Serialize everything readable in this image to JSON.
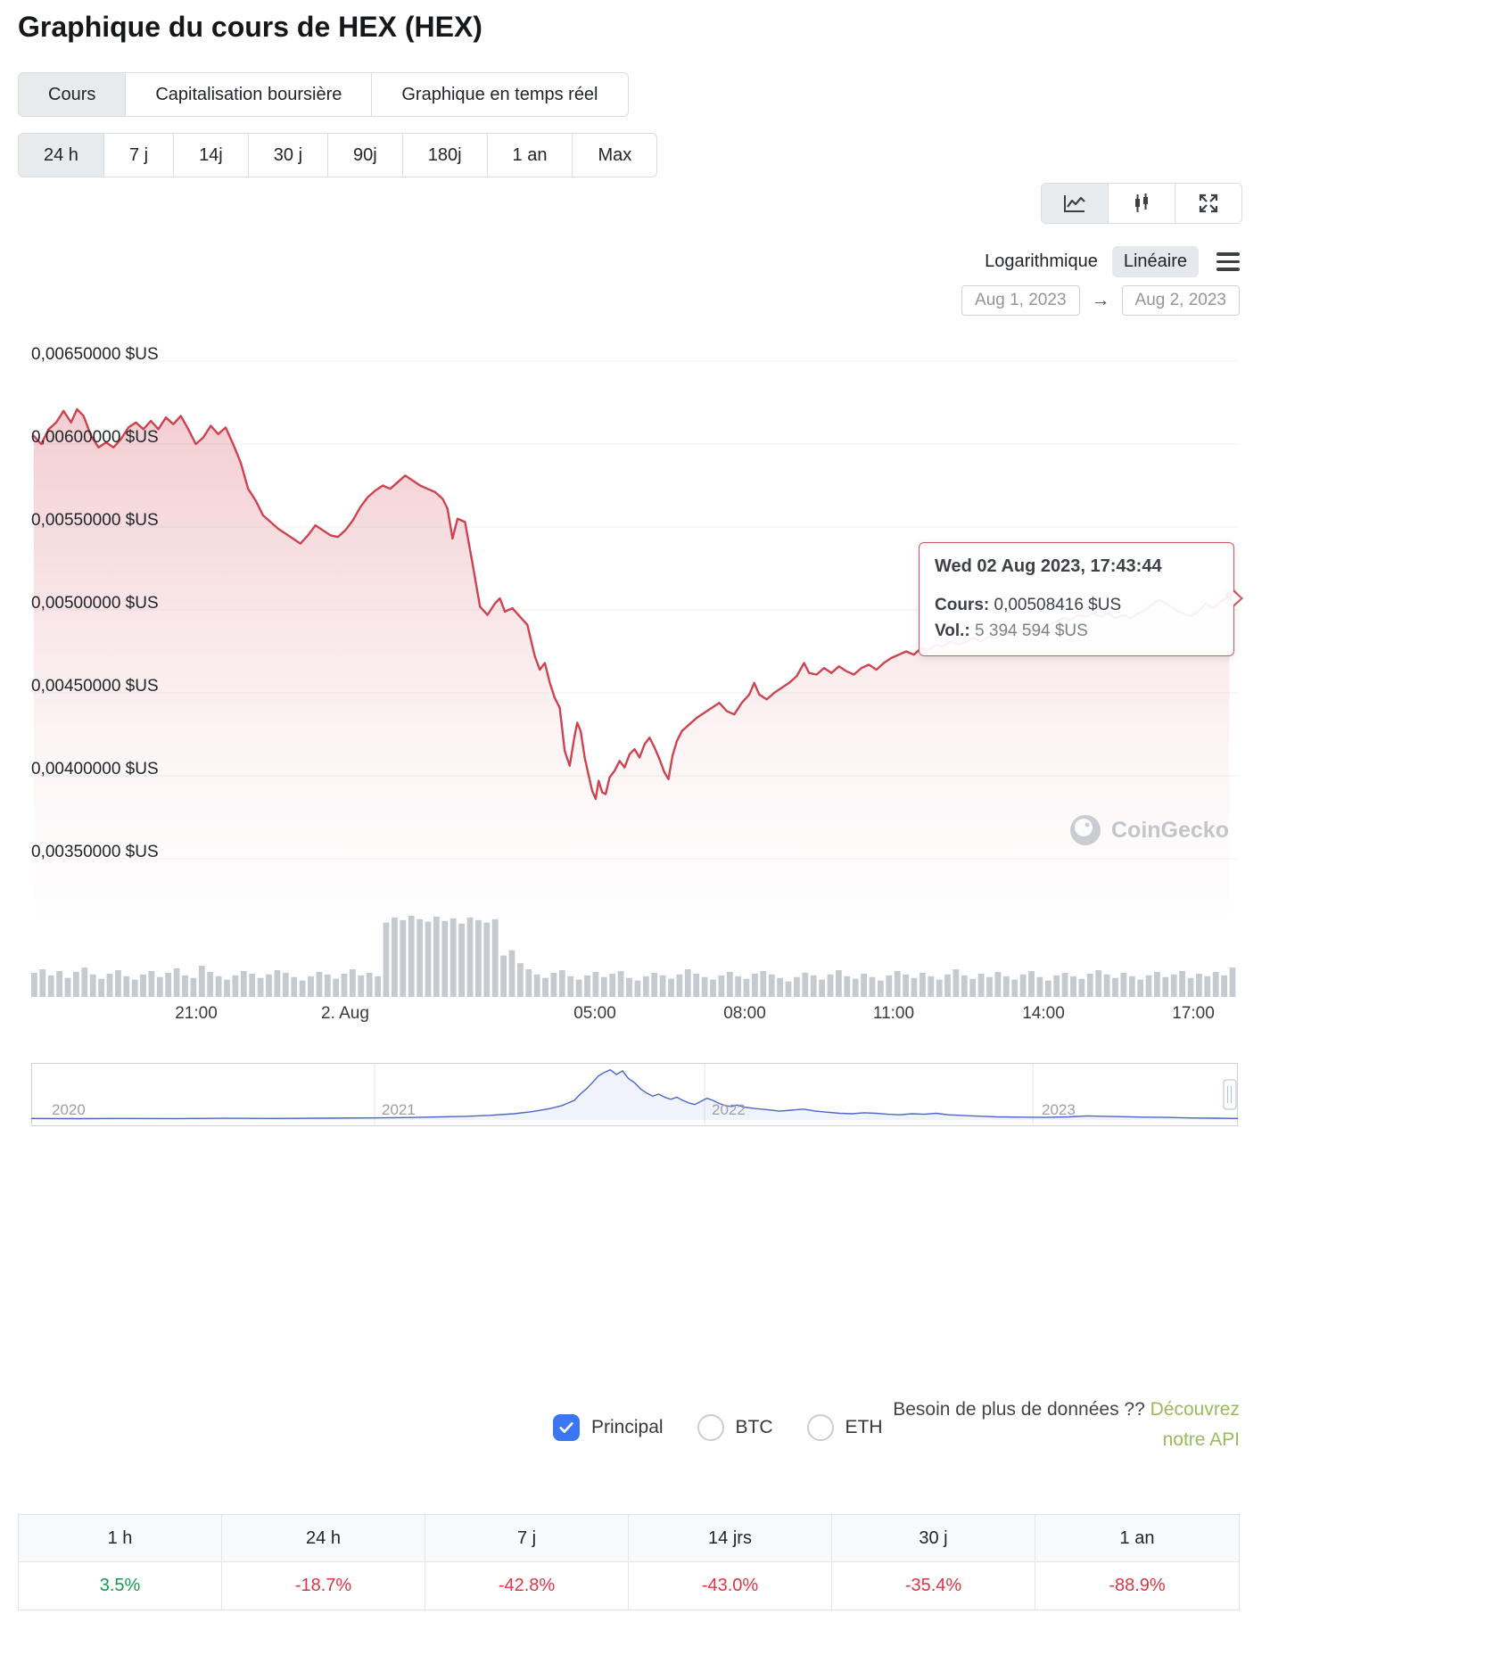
{
  "page": {
    "title": "Graphique du cours de HEX (HEX)"
  },
  "colors": {
    "accent_red": "#cf4350",
    "positive_green": "#169a4f",
    "negative_red": "#dc3545",
    "checkbox_blue": "#3b77f3",
    "api_link_green": "#9aba5c",
    "volume_gray": "#c5cad1",
    "navigator_blue": "#4a66cc",
    "selected_bg": "#e8ebee"
  },
  "tabs": {
    "chart_tabs": [
      {
        "label": "Cours",
        "selected": true
      },
      {
        "label": "Capitalisation boursière",
        "selected": false
      },
      {
        "label": "Graphique en temps réel",
        "selected": false
      }
    ],
    "range_tabs": [
      {
        "label": "24 h",
        "selected": true
      },
      {
        "label": "7 j",
        "selected": false
      },
      {
        "label": "14j",
        "selected": false
      },
      {
        "label": "30 j",
        "selected": false
      },
      {
        "label": "90j",
        "selected": false
      },
      {
        "label": "180j",
        "selected": false
      },
      {
        "label": "1 an",
        "selected": false
      },
      {
        "label": "Max",
        "selected": false
      }
    ]
  },
  "controls": {
    "chart_type_icons": [
      "line-chart",
      "candlestick",
      "fullscreen"
    ],
    "scale": {
      "log_label": "Logarithmique",
      "linear_label": "Linéaire",
      "selected": "linear"
    },
    "date_from": "Aug 1, 2023",
    "date_arrow": "→",
    "date_to": "Aug 2, 2023"
  },
  "tooltip": {
    "title": "Wed 02 Aug 2023, 17:43:44",
    "price_label": "Cours:",
    "price_value": "0,00508416 $US",
    "vol_label": "Vol.:",
    "vol_value": "5 394 594 $US"
  },
  "watermark": {
    "text": "CoinGecko"
  },
  "legend": {
    "items": [
      {
        "label": "Principal",
        "checked": true
      },
      {
        "label": "BTC",
        "checked": false
      },
      {
        "label": "ETH",
        "checked": false
      }
    ],
    "api_prefix": "Besoin de plus de données ??",
    "api_link_line1": "Découvrez",
    "api_link_line2": "notre API"
  },
  "perf_table": {
    "columns": [
      "1 h",
      "24 h",
      "7 j",
      "14 jrs",
      "30 j",
      "1 an"
    ],
    "values": [
      {
        "text": "3.5%",
        "dir": "up"
      },
      {
        "text": "-18.7%",
        "dir": "down"
      },
      {
        "text": "-42.8%",
        "dir": "down"
      },
      {
        "text": "-43.0%",
        "dir": "down"
      },
      {
        "text": "-35.4%",
        "dir": "down"
      },
      {
        "text": "-88.9%",
        "dir": "down"
      }
    ]
  },
  "chart_data": {
    "type": "line",
    "title": "HEX (HEX) price, 24 h",
    "currency": "$US",
    "line_color": "#cf4350",
    "t_range": [
      -0.3,
      23.9
    ],
    "y_ticks": [
      {
        "v": 0.0065,
        "label": "0,00650000 $US"
      },
      {
        "v": 0.006,
        "label": "0,00600000 $US"
      },
      {
        "v": 0.0055,
        "label": "0,00550000 $US"
      },
      {
        "v": 0.005,
        "label": "0,00500000 $US"
      },
      {
        "v": 0.0045,
        "label": "0,00450000 $US"
      },
      {
        "v": 0.004,
        "label": "0,00400000 $US"
      },
      {
        "v": 0.0035,
        "label": "0,00350000 $US"
      }
    ],
    "x_ticks": [
      {
        "t": 3,
        "label": "21:00"
      },
      {
        "t": 6,
        "label": "2. Aug"
      },
      {
        "t": 11,
        "label": "05:00"
      },
      {
        "t": 14,
        "label": "08:00"
      },
      {
        "t": 17,
        "label": "11:00"
      },
      {
        "t": 20,
        "label": "14:00"
      },
      {
        "t": 23,
        "label": "17:00"
      }
    ],
    "end_point": {
      "t": 23.73,
      "price": 0.00508416
    },
    "points": [
      [
        -0.25,
        0.00605
      ],
      [
        -0.1,
        0.006
      ],
      [
        0.05,
        0.00609
      ],
      [
        0.2,
        0.00613
      ],
      [
        0.35,
        0.0062
      ],
      [
        0.5,
        0.00613
      ],
      [
        0.62,
        0.00621
      ],
      [
        0.75,
        0.00617
      ],
      [
        0.9,
        0.00605
      ],
      [
        1.05,
        0.00598
      ],
      [
        1.2,
        0.00601
      ],
      [
        1.35,
        0.00598
      ],
      [
        1.5,
        0.00603
      ],
      [
        1.65,
        0.0061
      ],
      [
        1.8,
        0.00613
      ],
      [
        1.95,
        0.00609
      ],
      [
        2.1,
        0.00614
      ],
      [
        2.25,
        0.00609
      ],
      [
        2.4,
        0.00616
      ],
      [
        2.55,
        0.00612
      ],
      [
        2.7,
        0.00617
      ],
      [
        2.85,
        0.00609
      ],
      [
        3.0,
        0.006
      ],
      [
        3.15,
        0.00604
      ],
      [
        3.3,
        0.00611
      ],
      [
        3.45,
        0.00606
      ],
      [
        3.6,
        0.0061
      ],
      [
        3.75,
        0.006
      ],
      [
        3.9,
        0.00589
      ],
      [
        4.05,
        0.00573
      ],
      [
        4.2,
        0.00566
      ],
      [
        4.35,
        0.00557
      ],
      [
        4.5,
        0.00553
      ],
      [
        4.65,
        0.00549
      ],
      [
        4.8,
        0.00546
      ],
      [
        4.95,
        0.00543
      ],
      [
        5.1,
        0.0054
      ],
      [
        5.25,
        0.00545
      ],
      [
        5.4,
        0.00551
      ],
      [
        5.55,
        0.00548
      ],
      [
        5.7,
        0.00545
      ],
      [
        5.85,
        0.00544
      ],
      [
        6.0,
        0.00548
      ],
      [
        6.15,
        0.00554
      ],
      [
        6.3,
        0.00562
      ],
      [
        6.45,
        0.00568
      ],
      [
        6.6,
        0.00572
      ],
      [
        6.75,
        0.00575
      ],
      [
        6.9,
        0.00573
      ],
      [
        7.05,
        0.00577
      ],
      [
        7.2,
        0.00581
      ],
      [
        7.35,
        0.00578
      ],
      [
        7.5,
        0.00575
      ],
      [
        7.65,
        0.00573
      ],
      [
        7.8,
        0.00571
      ],
      [
        7.95,
        0.00567
      ],
      [
        8.05,
        0.00561
      ],
      [
        8.15,
        0.00543
      ],
      [
        8.25,
        0.00555
      ],
      [
        8.4,
        0.00553
      ],
      [
        8.55,
        0.00528
      ],
      [
        8.7,
        0.00502
      ],
      [
        8.85,
        0.00497
      ],
      [
        9.0,
        0.00504
      ],
      [
        9.1,
        0.00507
      ],
      [
        9.2,
        0.00499
      ],
      [
        9.35,
        0.00501
      ],
      [
        9.5,
        0.00496
      ],
      [
        9.65,
        0.00491
      ],
      [
        9.8,
        0.00472
      ],
      [
        9.9,
        0.00464
      ],
      [
        10.0,
        0.00468
      ],
      [
        10.1,
        0.00456
      ],
      [
        10.2,
        0.00447
      ],
      [
        10.3,
        0.00441
      ],
      [
        10.4,
        0.00415
      ],
      [
        10.5,
        0.00406
      ],
      [
        10.58,
        0.00421
      ],
      [
        10.65,
        0.00432
      ],
      [
        10.72,
        0.00427
      ],
      [
        10.8,
        0.00411
      ],
      [
        10.88,
        0.004
      ],
      [
        10.95,
        0.00391
      ],
      [
        11.02,
        0.00386
      ],
      [
        11.08,
        0.00397
      ],
      [
        11.15,
        0.0039
      ],
      [
        11.22,
        0.00389
      ],
      [
        11.3,
        0.00399
      ],
      [
        11.4,
        0.00403
      ],
      [
        11.5,
        0.00409
      ],
      [
        11.6,
        0.00405
      ],
      [
        11.7,
        0.00413
      ],
      [
        11.8,
        0.00416
      ],
      [
        11.9,
        0.00411
      ],
      [
        12.0,
        0.00419
      ],
      [
        12.1,
        0.00423
      ],
      [
        12.2,
        0.00417
      ],
      [
        12.3,
        0.0041
      ],
      [
        12.4,
        0.00402
      ],
      [
        12.48,
        0.00398
      ],
      [
        12.56,
        0.00412
      ],
      [
        12.65,
        0.00421
      ],
      [
        12.75,
        0.00427
      ],
      [
        12.9,
        0.00431
      ],
      [
        13.05,
        0.00435
      ],
      [
        13.2,
        0.00438
      ],
      [
        13.35,
        0.00441
      ],
      [
        13.5,
        0.00444
      ],
      [
        13.65,
        0.00439
      ],
      [
        13.8,
        0.00437
      ],
      [
        13.95,
        0.00444
      ],
      [
        14.1,
        0.00449
      ],
      [
        14.2,
        0.00456
      ],
      [
        14.3,
        0.00449
      ],
      [
        14.45,
        0.00446
      ],
      [
        14.6,
        0.0045
      ],
      [
        14.75,
        0.00453
      ],
      [
        14.9,
        0.00456
      ],
      [
        15.05,
        0.0046
      ],
      [
        15.2,
        0.00468
      ],
      [
        15.3,
        0.00462
      ],
      [
        15.45,
        0.00461
      ],
      [
        15.6,
        0.00465
      ],
      [
        15.75,
        0.00462
      ],
      [
        15.9,
        0.00466
      ],
      [
        16.05,
        0.00463
      ],
      [
        16.2,
        0.00461
      ],
      [
        16.35,
        0.00465
      ],
      [
        16.5,
        0.00467
      ],
      [
        16.65,
        0.00464
      ],
      [
        16.8,
        0.00468
      ],
      [
        16.95,
        0.00471
      ],
      [
        17.1,
        0.00473
      ],
      [
        17.25,
        0.00475
      ],
      [
        17.4,
        0.00473
      ],
      [
        17.55,
        0.00477
      ],
      [
        17.7,
        0.00476
      ],
      [
        17.85,
        0.00479
      ],
      [
        18.0,
        0.00478
      ],
      [
        18.15,
        0.00481
      ],
      [
        18.3,
        0.00479
      ],
      [
        18.45,
        0.00481
      ],
      [
        18.6,
        0.00483
      ],
      [
        18.75,
        0.00481
      ],
      [
        18.9,
        0.00484
      ],
      [
        19.05,
        0.00483
      ],
      [
        19.2,
        0.00486
      ],
      [
        19.35,
        0.00485
      ],
      [
        19.5,
        0.00487
      ],
      [
        19.65,
        0.00486
      ],
      [
        19.8,
        0.00489
      ],
      [
        19.95,
        0.00488
      ],
      [
        20.1,
        0.00491
      ],
      [
        20.25,
        0.00493
      ],
      [
        20.4,
        0.00495
      ],
      [
        20.55,
        0.00494
      ],
      [
        20.7,
        0.00497
      ],
      [
        20.85,
        0.00496
      ],
      [
        21.0,
        0.00498
      ],
      [
        21.15,
        0.00496
      ],
      [
        21.3,
        0.00498
      ],
      [
        21.45,
        0.00495
      ],
      [
        21.6,
        0.00497
      ],
      [
        21.75,
        0.00495
      ],
      [
        21.9,
        0.00498
      ],
      [
        22.05,
        0.005
      ],
      [
        22.2,
        0.00504
      ],
      [
        22.35,
        0.00506
      ],
      [
        22.5,
        0.00503
      ],
      [
        22.65,
        0.005
      ],
      [
        22.8,
        0.00498
      ],
      [
        22.95,
        0.00496
      ],
      [
        23.1,
        0.00499
      ],
      [
        23.25,
        0.00504
      ],
      [
        23.4,
        0.00501
      ],
      [
        23.55,
        0.00505
      ],
      [
        23.73,
        0.00508
      ]
    ],
    "volume": {
      "color": "#c5cad1",
      "max": 9.5,
      "values": [
        2.8,
        3.2,
        2.5,
        3.0,
        2.2,
        2.9,
        3.4,
        2.6,
        2.1,
        2.7,
        3.1,
        2.4,
        2.0,
        2.6,
        3.0,
        2.3,
        2.8,
        3.3,
        2.5,
        2.2,
        3.6,
        2.9,
        2.4,
        2.0,
        2.5,
        3.0,
        2.7,
        2.2,
        2.6,
        3.1,
        2.8,
        2.3,
        1.9,
        2.4,
        2.9,
        2.6,
        2.1,
        2.7,
        3.2,
        2.5,
        2.8,
        2.4,
        8.6,
        9.2,
        8.9,
        9.4,
        9.0,
        8.7,
        9.3,
        8.8,
        9.1,
        8.5,
        9.2,
        8.9,
        8.6,
        9.0,
        4.8,
        5.4,
        3.9,
        3.2,
        2.6,
        2.2,
        2.8,
        3.1,
        2.4,
        2.0,
        2.5,
        2.9,
        2.3,
        2.7,
        3.0,
        2.2,
        1.9,
        2.4,
        2.8,
        2.5,
        2.1,
        2.6,
        3.2,
        2.7,
        2.3,
        2.0,
        2.5,
        2.9,
        2.4,
        2.1,
        2.7,
        3.0,
        2.6,
        2.2,
        1.8,
        2.3,
        2.8,
        2.5,
        2.0,
        2.6,
        3.1,
        2.4,
        2.1,
        2.7,
        2.3,
        1.9,
        2.5,
        3.0,
        2.6,
        2.2,
        2.8,
        2.4,
        2.0,
        2.6,
        3.2,
        2.5,
        2.1,
        2.7,
        2.3,
        2.9,
        2.4,
        2.0,
        2.6,
        3.0,
        2.3,
        1.9,
        2.5,
        2.8,
        2.4,
        2.1,
        2.7,
        3.1,
        2.6,
        2.2,
        2.8,
        2.4,
        2.0,
        2.5,
        2.9,
        2.3,
        2.6,
        3.0,
        2.2,
        2.7,
        2.4,
        2.9,
        2.5,
        3.4
      ]
    },
    "navigator": {
      "line_color": "#4a66cc",
      "year_labels": [
        {
          "pos": 0.017,
          "label": "2020"
        },
        {
          "pos": 0.2905,
          "label": "2021"
        },
        {
          "pos": 0.5639,
          "label": "2022"
        },
        {
          "pos": 0.8374,
          "label": "2023"
        }
      ],
      "dividers": [
        0.2846,
        0.558,
        0.83
      ],
      "points": [
        [
          0,
          0.03
        ],
        [
          0.04,
          0.025
        ],
        [
          0.08,
          0.03
        ],
        [
          0.12,
          0.028
        ],
        [
          0.16,
          0.032
        ],
        [
          0.2,
          0.03
        ],
        [
          0.24,
          0.035
        ],
        [
          0.28,
          0.04
        ],
        [
          0.3,
          0.045
        ],
        [
          0.32,
          0.05
        ],
        [
          0.34,
          0.06
        ],
        [
          0.36,
          0.07
        ],
        [
          0.38,
          0.09
        ],
        [
          0.4,
          0.12
        ],
        [
          0.415,
          0.16
        ],
        [
          0.43,
          0.22
        ],
        [
          0.44,
          0.28
        ],
        [
          0.45,
          0.38
        ],
        [
          0.455,
          0.5
        ],
        [
          0.46,
          0.6
        ],
        [
          0.465,
          0.72
        ],
        [
          0.47,
          0.85
        ],
        [
          0.475,
          0.92
        ],
        [
          0.48,
          0.97
        ],
        [
          0.485,
          0.88
        ],
        [
          0.49,
          0.95
        ],
        [
          0.495,
          0.8
        ],
        [
          0.5,
          0.72
        ],
        [
          0.505,
          0.6
        ],
        [
          0.51,
          0.52
        ],
        [
          0.515,
          0.46
        ],
        [
          0.52,
          0.5
        ],
        [
          0.525,
          0.44
        ],
        [
          0.53,
          0.4
        ],
        [
          0.535,
          0.44
        ],
        [
          0.54,
          0.38
        ],
        [
          0.545,
          0.33
        ],
        [
          0.55,
          0.3
        ],
        [
          0.555,
          0.36
        ],
        [
          0.56,
          0.42
        ],
        [
          0.565,
          0.38
        ],
        [
          0.57,
          0.32
        ],
        [
          0.575,
          0.28
        ],
        [
          0.58,
          0.26
        ],
        [
          0.585,
          0.29
        ],
        [
          0.59,
          0.25
        ],
        [
          0.6,
          0.22
        ],
        [
          0.61,
          0.2
        ],
        [
          0.62,
          0.17
        ],
        [
          0.63,
          0.19
        ],
        [
          0.64,
          0.21
        ],
        [
          0.65,
          0.17
        ],
        [
          0.66,
          0.15
        ],
        [
          0.67,
          0.13
        ],
        [
          0.68,
          0.12
        ],
        [
          0.69,
          0.14
        ],
        [
          0.7,
          0.13
        ],
        [
          0.71,
          0.11
        ],
        [
          0.72,
          0.1
        ],
        [
          0.73,
          0.12
        ],
        [
          0.74,
          0.11
        ],
        [
          0.75,
          0.13
        ],
        [
          0.76,
          0.1
        ],
        [
          0.77,
          0.09
        ],
        [
          0.78,
          0.08
        ],
        [
          0.79,
          0.07
        ],
        [
          0.8,
          0.06
        ],
        [
          0.82,
          0.055
        ],
        [
          0.84,
          0.05
        ],
        [
          0.86,
          0.06
        ],
        [
          0.875,
          0.08
        ],
        [
          0.89,
          0.07
        ],
        [
          0.9,
          0.065
        ],
        [
          0.92,
          0.055
        ],
        [
          0.94,
          0.05
        ],
        [
          0.96,
          0.04
        ],
        [
          0.98,
          0.035
        ],
        [
          1,
          0.03
        ]
      ]
    }
  }
}
